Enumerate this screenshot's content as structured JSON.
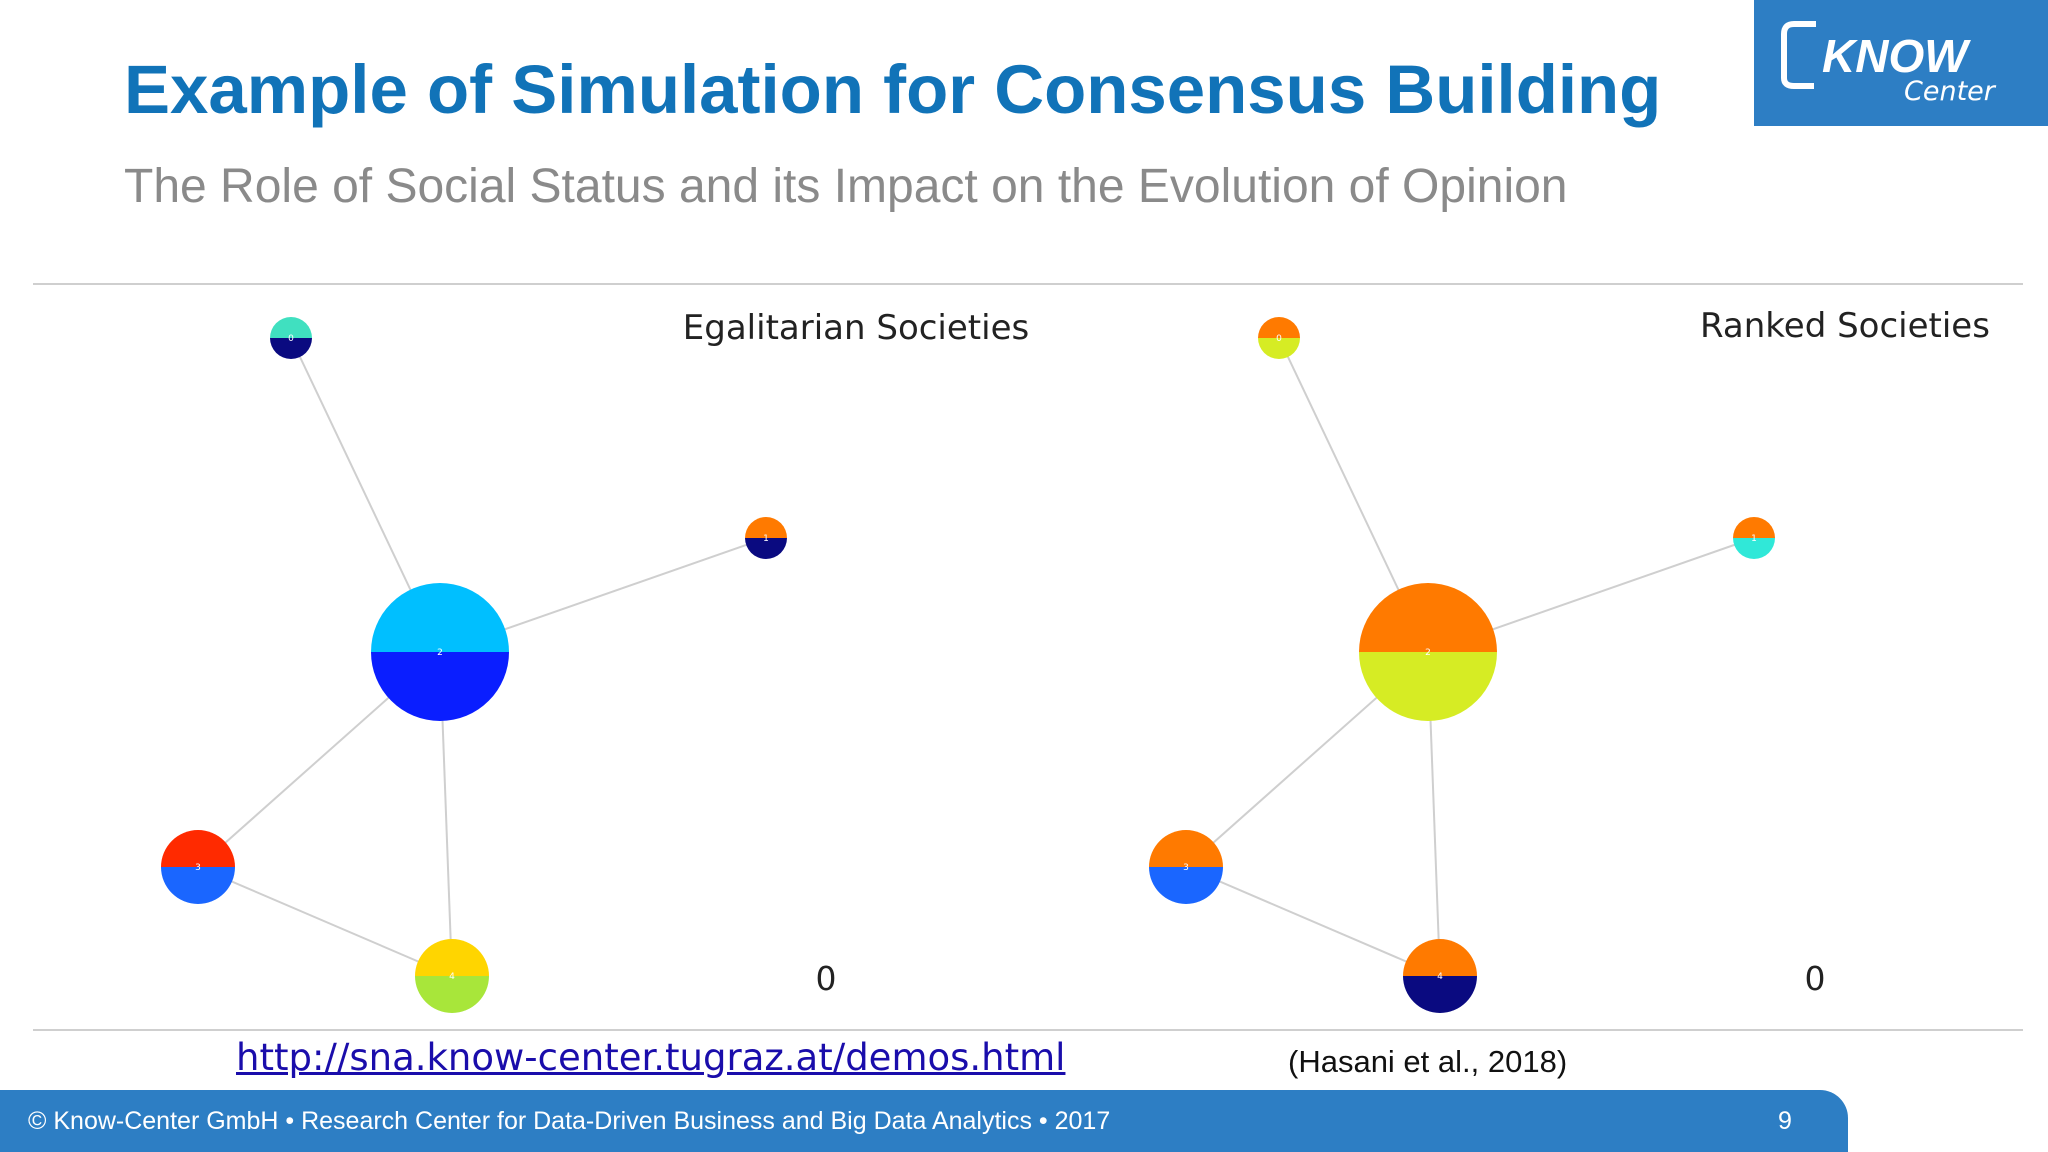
{
  "slide": {
    "title": "Example of Simulation for Consensus Building",
    "subtitle": "The Role of Social Status and its Impact on the Evolution of Opinion"
  },
  "logo": {
    "line1": "KNOW",
    "line2": "Center"
  },
  "panels": [
    {
      "title": "Egalitarian Societies",
      "counter": "0",
      "nodes": [
        {
          "label": "0",
          "top_color": "#40e0c0",
          "bottom_color": "#0a0a80"
        },
        {
          "label": "1",
          "top_color": "#ff7a00",
          "bottom_color": "#0a0a80"
        },
        {
          "label": "2",
          "top_color": "#00bfff",
          "bottom_color": "#0a1eff"
        },
        {
          "label": "3",
          "top_color": "#ff2a00",
          "bottom_color": "#1a66ff"
        },
        {
          "label": "4",
          "top_color": "#ffd500",
          "bottom_color": "#a8e63a"
        }
      ]
    },
    {
      "title": "Ranked Societies",
      "counter": "0",
      "nodes": [
        {
          "label": "0",
          "top_color": "#ff7a00",
          "bottom_color": "#d6ec24"
        },
        {
          "label": "1",
          "top_color": "#ff7a00",
          "bottom_color": "#30e8d8"
        },
        {
          "label": "2",
          "top_color": "#ff7a00",
          "bottom_color": "#d6ec24"
        },
        {
          "label": "3",
          "top_color": "#ff7a00",
          "bottom_color": "#1a66ff"
        },
        {
          "label": "4",
          "top_color": "#ff7a00",
          "bottom_color": "#0a0a80"
        }
      ]
    }
  ],
  "edges": [
    [
      "2",
      "0"
    ],
    [
      "2",
      "1"
    ],
    [
      "2",
      "3"
    ],
    [
      "2",
      "4"
    ],
    [
      "3",
      "4"
    ]
  ],
  "link": "http://sna.know-center.tugraz.at/demos.html",
  "citation": "(Hasani et al., 2018)",
  "footer": {
    "text": "© Know-Center GmbH • Research Center for Data-Driven Business and Big Data Analytics • 2017",
    "page": "9"
  },
  "colors": {
    "brand_blue": "#2d7ec4",
    "title_blue": "#1173b8",
    "subtitle_gray": "#8a8a8a"
  }
}
